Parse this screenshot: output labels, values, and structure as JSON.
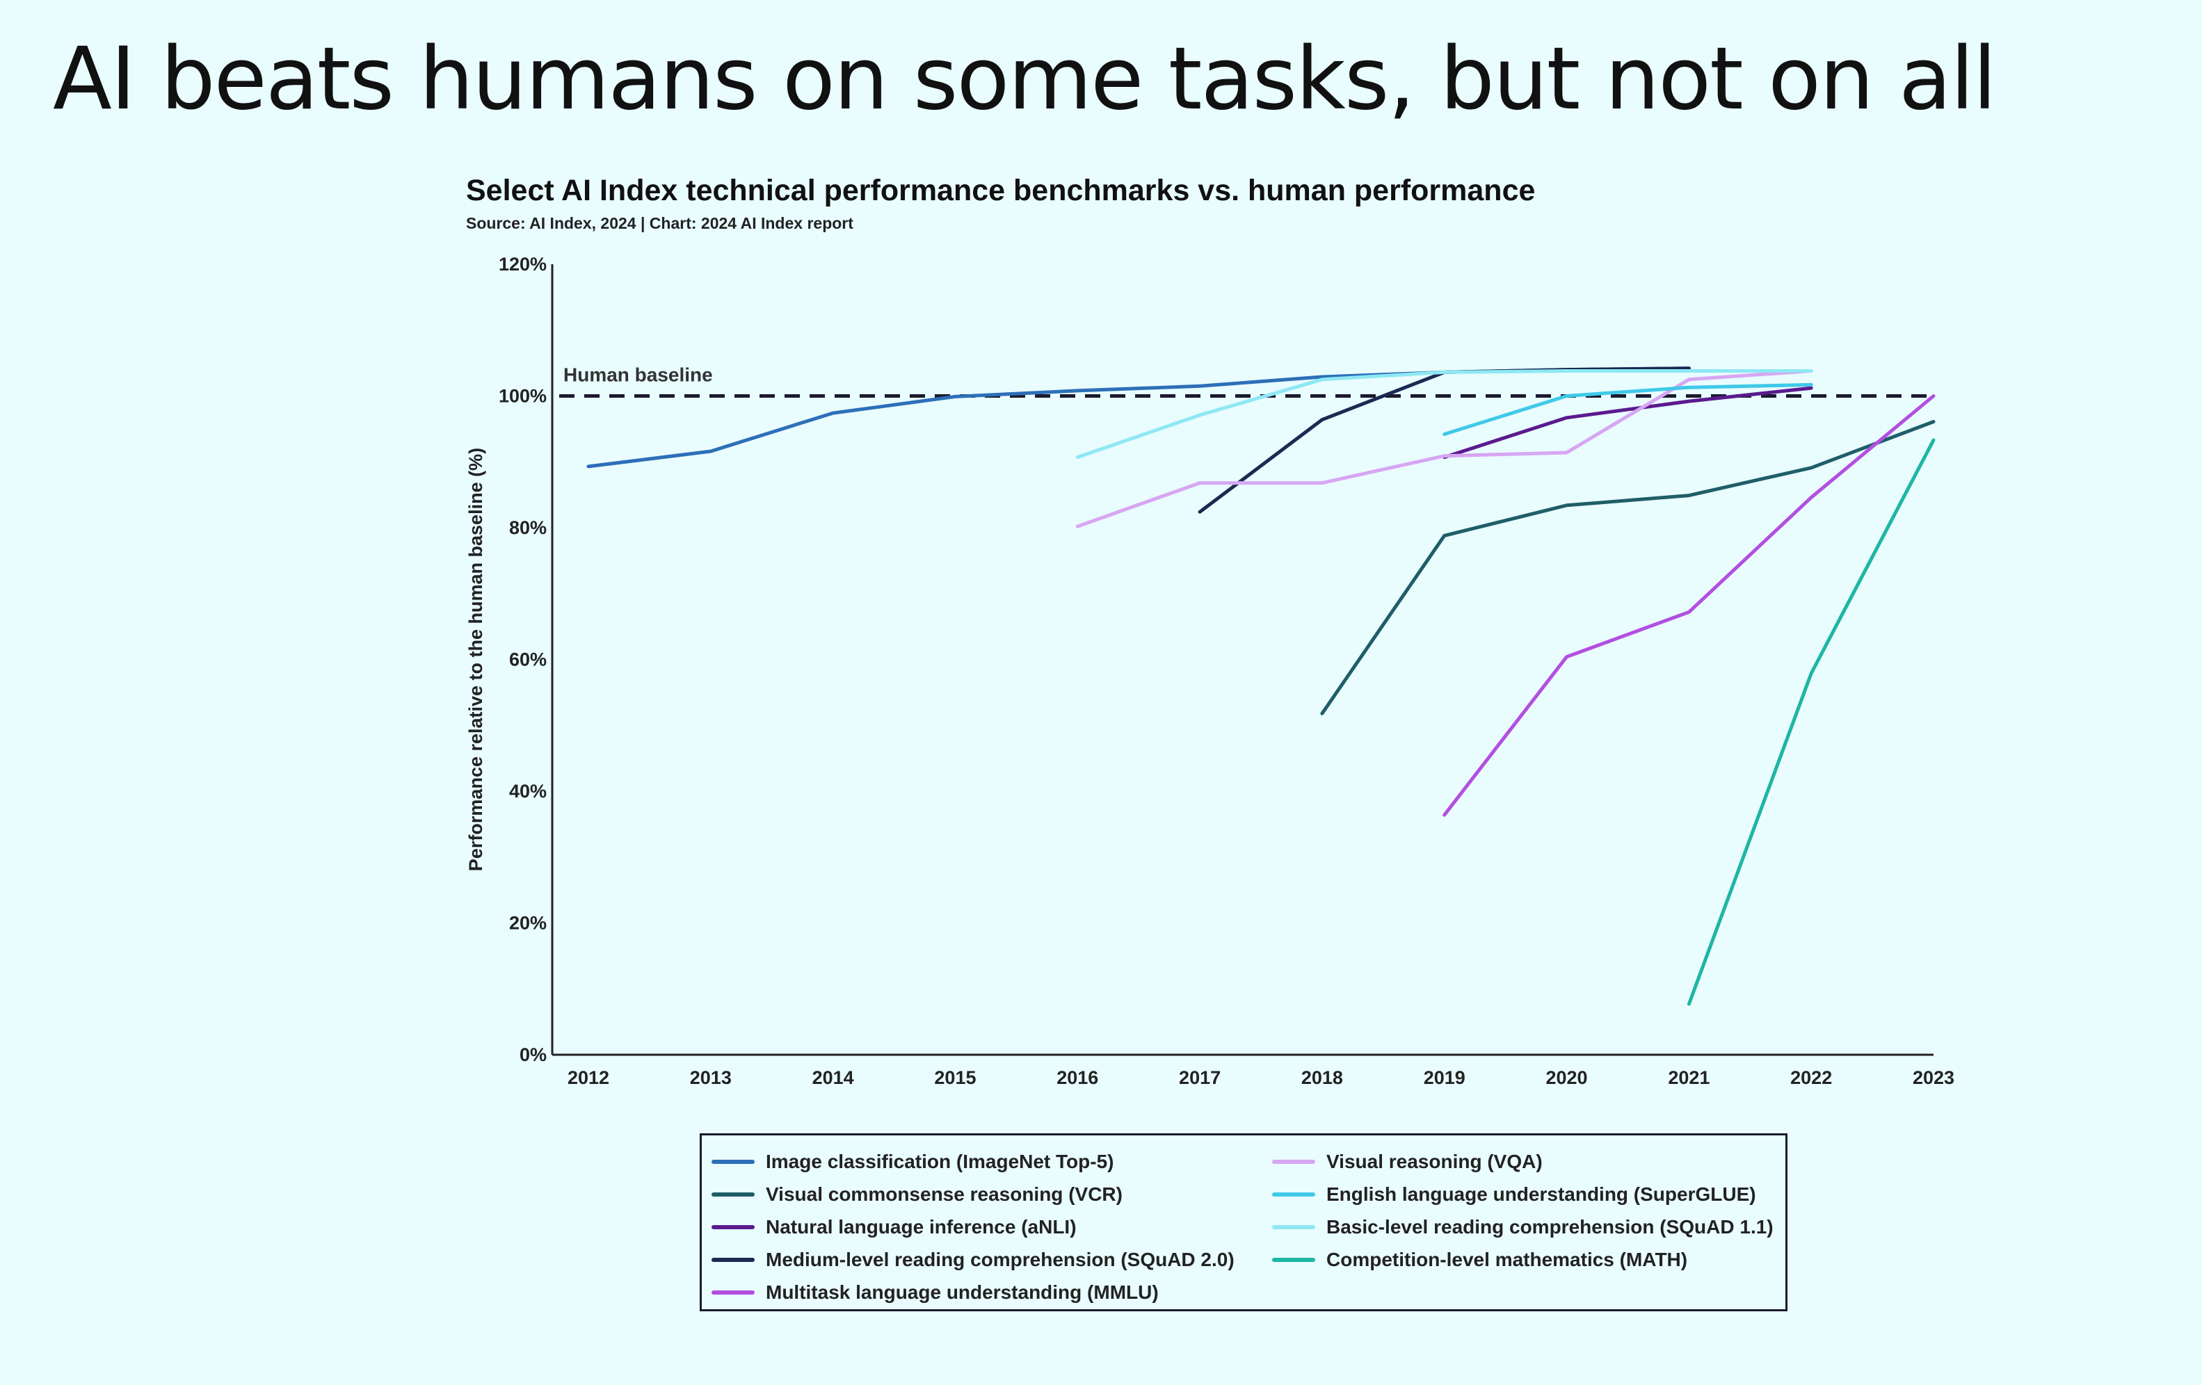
{
  "slide": {
    "title": "AI beats humans on some tasks, but not on all"
  },
  "chart_data": {
    "type": "line",
    "title": "Select AI Index technical performance benchmarks vs. human performance",
    "subtitle": "Source: AI Index, 2024 | Chart: 2024 AI Index report",
    "xlabel": "",
    "ylabel": "Performance relative to the human baseline (%)",
    "x": [
      2012,
      2013,
      2014,
      2015,
      2016,
      2017,
      2018,
      2019,
      2020,
      2021,
      2022,
      2023
    ],
    "x_tick_labels": [
      "2012",
      "2013",
      "2014",
      "2015",
      "2016",
      "2017",
      "2018",
      "2019",
      "2020",
      "2021",
      "2022",
      "2023"
    ],
    "ylim": [
      0,
      120
    ],
    "y_ticks": [
      0,
      20,
      40,
      60,
      80,
      100,
      120
    ],
    "y_tick_labels": [
      "0%",
      "20%",
      "40%",
      "60%",
      "80%",
      "100%",
      "120%"
    ],
    "grid": false,
    "legend_position": "bottom",
    "reference_line": {
      "label": "Human baseline",
      "value": 100
    },
    "series": [
      {
        "name": "Image classification (ImageNet Top-5)",
        "color": "#2d6fb8",
        "points": [
          [
            2012,
            89.3
          ],
          [
            2013,
            91.6
          ],
          [
            2014,
            97.4
          ],
          [
            2015,
            99.9
          ],
          [
            2016,
            100.8
          ],
          [
            2017,
            101.5
          ],
          [
            2018,
            102.9
          ],
          [
            2019,
            103.6
          ],
          [
            2020,
            104.0
          ],
          [
            2021,
            104.2
          ]
        ]
      },
      {
        "name": "Visual commonsense reasoning (VCR)",
        "color": "#1f5e68",
        "points": [
          [
            2018,
            51.8
          ],
          [
            2019,
            78.8
          ],
          [
            2020,
            83.4
          ],
          [
            2021,
            84.9
          ],
          [
            2022,
            89.1
          ],
          [
            2023,
            96.1
          ]
        ]
      },
      {
        "name": "Natural language inference (aNLI)",
        "color": "#5b1a8e",
        "points": [
          [
            2019,
            90.7
          ],
          [
            2020,
            96.7
          ],
          [
            2021,
            99.2
          ],
          [
            2022,
            101.2
          ]
        ]
      },
      {
        "name": "Medium-level reading comprehension (SQuAD 2.0)",
        "color": "#1b2a52",
        "points": [
          [
            2017,
            82.4
          ],
          [
            2018,
            96.4
          ],
          [
            2019,
            103.6
          ],
          [
            2020,
            104.0
          ],
          [
            2021,
            104.2
          ]
        ]
      },
      {
        "name": "Multitask language understanding (MMLU)",
        "color": "#b24fe0",
        "points": [
          [
            2019,
            36.4
          ],
          [
            2020,
            60.4
          ],
          [
            2021,
            67.2
          ],
          [
            2022,
            84.6
          ],
          [
            2023,
            100.0
          ]
        ]
      },
      {
        "name": "Visual reasoning (VQA)",
        "color": "#d7a6f2",
        "points": [
          [
            2016,
            80.2
          ],
          [
            2017,
            86.8
          ],
          [
            2018,
            86.8
          ],
          [
            2019,
            90.9
          ],
          [
            2020,
            91.4
          ],
          [
            2021,
            102.5
          ],
          [
            2022,
            103.8
          ]
        ]
      },
      {
        "name": "English language understanding (SuperGLUE)",
        "color": "#3fc9e8",
        "points": [
          [
            2019,
            94.2
          ],
          [
            2020,
            100.0
          ],
          [
            2021,
            101.3
          ],
          [
            2022,
            101.7
          ]
        ]
      },
      {
        "name": "Basic-level reading comprehension (SQuAD 1.1)",
        "color": "#8ee8f4",
        "points": [
          [
            2016,
            90.7
          ],
          [
            2017,
            97.1
          ],
          [
            2018,
            102.5
          ],
          [
            2019,
            103.6
          ],
          [
            2020,
            103.8
          ],
          [
            2021,
            103.8
          ],
          [
            2022,
            103.8
          ]
        ]
      },
      {
        "name": "Competition-level mathematics (MATH)",
        "color": "#1db6a4",
        "points": [
          [
            2021,
            7.7
          ],
          [
            2022,
            57.9
          ],
          [
            2023,
            93.3
          ]
        ]
      }
    ]
  }
}
